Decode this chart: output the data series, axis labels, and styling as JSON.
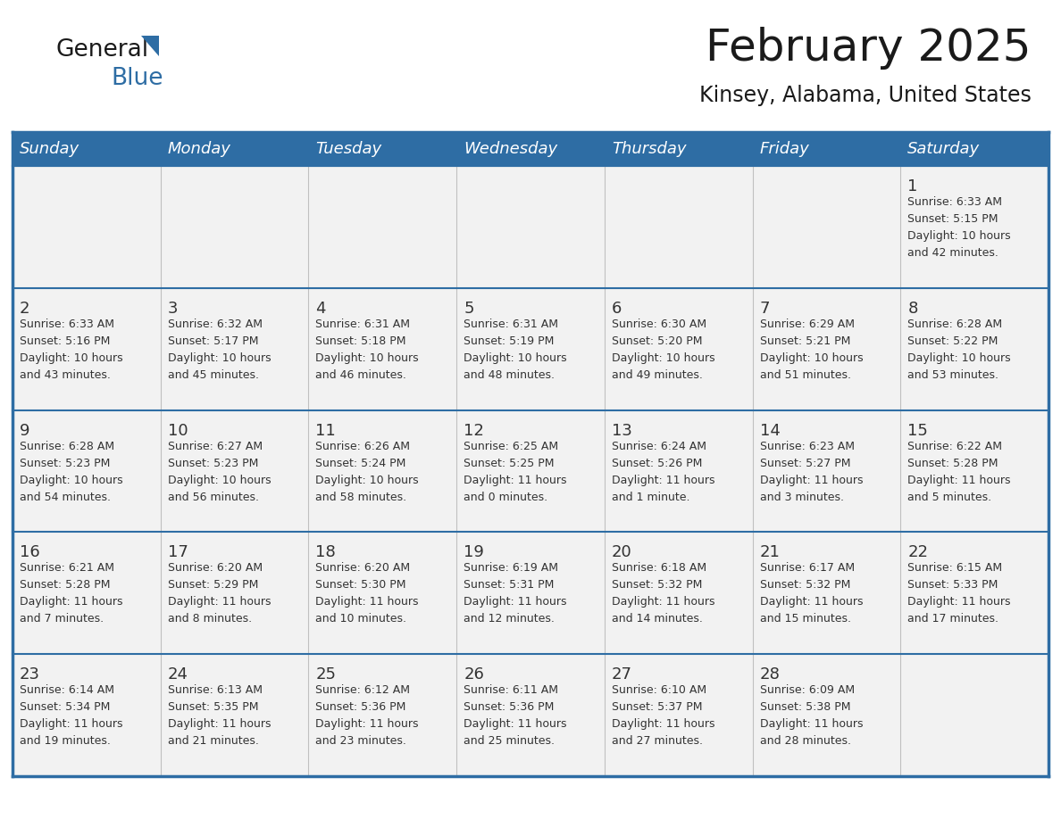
{
  "title": "February 2025",
  "subtitle": "Kinsey, Alabama, United States",
  "header_bg": "#2E6DA4",
  "header_text_color": "#FFFFFF",
  "cell_bg_alt": "#EFEFEF",
  "cell_bg_white": "#FFFFFF",
  "cell_text_color": "#333333",
  "day_num_color": "#333333",
  "border_color": "#2E6DA4",
  "sep_line_color": "#2E6DA4",
  "days_of_week": [
    "Sunday",
    "Monday",
    "Tuesday",
    "Wednesday",
    "Thursday",
    "Friday",
    "Saturday"
  ],
  "weeks": [
    [
      {
        "day": "",
        "info": ""
      },
      {
        "day": "",
        "info": ""
      },
      {
        "day": "",
        "info": ""
      },
      {
        "day": "",
        "info": ""
      },
      {
        "day": "",
        "info": ""
      },
      {
        "day": "",
        "info": ""
      },
      {
        "day": "1",
        "info": "Sunrise: 6:33 AM\nSunset: 5:15 PM\nDaylight: 10 hours\nand 42 minutes."
      }
    ],
    [
      {
        "day": "2",
        "info": "Sunrise: 6:33 AM\nSunset: 5:16 PM\nDaylight: 10 hours\nand 43 minutes."
      },
      {
        "day": "3",
        "info": "Sunrise: 6:32 AM\nSunset: 5:17 PM\nDaylight: 10 hours\nand 45 minutes."
      },
      {
        "day": "4",
        "info": "Sunrise: 6:31 AM\nSunset: 5:18 PM\nDaylight: 10 hours\nand 46 minutes."
      },
      {
        "day": "5",
        "info": "Sunrise: 6:31 AM\nSunset: 5:19 PM\nDaylight: 10 hours\nand 48 minutes."
      },
      {
        "day": "6",
        "info": "Sunrise: 6:30 AM\nSunset: 5:20 PM\nDaylight: 10 hours\nand 49 minutes."
      },
      {
        "day": "7",
        "info": "Sunrise: 6:29 AM\nSunset: 5:21 PM\nDaylight: 10 hours\nand 51 minutes."
      },
      {
        "day": "8",
        "info": "Sunrise: 6:28 AM\nSunset: 5:22 PM\nDaylight: 10 hours\nand 53 minutes."
      }
    ],
    [
      {
        "day": "9",
        "info": "Sunrise: 6:28 AM\nSunset: 5:23 PM\nDaylight: 10 hours\nand 54 minutes."
      },
      {
        "day": "10",
        "info": "Sunrise: 6:27 AM\nSunset: 5:23 PM\nDaylight: 10 hours\nand 56 minutes."
      },
      {
        "day": "11",
        "info": "Sunrise: 6:26 AM\nSunset: 5:24 PM\nDaylight: 10 hours\nand 58 minutes."
      },
      {
        "day": "12",
        "info": "Sunrise: 6:25 AM\nSunset: 5:25 PM\nDaylight: 11 hours\nand 0 minutes."
      },
      {
        "day": "13",
        "info": "Sunrise: 6:24 AM\nSunset: 5:26 PM\nDaylight: 11 hours\nand 1 minute."
      },
      {
        "day": "14",
        "info": "Sunrise: 6:23 AM\nSunset: 5:27 PM\nDaylight: 11 hours\nand 3 minutes."
      },
      {
        "day": "15",
        "info": "Sunrise: 6:22 AM\nSunset: 5:28 PM\nDaylight: 11 hours\nand 5 minutes."
      }
    ],
    [
      {
        "day": "16",
        "info": "Sunrise: 6:21 AM\nSunset: 5:28 PM\nDaylight: 11 hours\nand 7 minutes."
      },
      {
        "day": "17",
        "info": "Sunrise: 6:20 AM\nSunset: 5:29 PM\nDaylight: 11 hours\nand 8 minutes."
      },
      {
        "day": "18",
        "info": "Sunrise: 6:20 AM\nSunset: 5:30 PM\nDaylight: 11 hours\nand 10 minutes."
      },
      {
        "day": "19",
        "info": "Sunrise: 6:19 AM\nSunset: 5:31 PM\nDaylight: 11 hours\nand 12 minutes."
      },
      {
        "day": "20",
        "info": "Sunrise: 6:18 AM\nSunset: 5:32 PM\nDaylight: 11 hours\nand 14 minutes."
      },
      {
        "day": "21",
        "info": "Sunrise: 6:17 AM\nSunset: 5:32 PM\nDaylight: 11 hours\nand 15 minutes."
      },
      {
        "day": "22",
        "info": "Sunrise: 6:15 AM\nSunset: 5:33 PM\nDaylight: 11 hours\nand 17 minutes."
      }
    ],
    [
      {
        "day": "23",
        "info": "Sunrise: 6:14 AM\nSunset: 5:34 PM\nDaylight: 11 hours\nand 19 minutes."
      },
      {
        "day": "24",
        "info": "Sunrise: 6:13 AM\nSunset: 5:35 PM\nDaylight: 11 hours\nand 21 minutes."
      },
      {
        "day": "25",
        "info": "Sunrise: 6:12 AM\nSunset: 5:36 PM\nDaylight: 11 hours\nand 23 minutes."
      },
      {
        "day": "26",
        "info": "Sunrise: 6:11 AM\nSunset: 5:36 PM\nDaylight: 11 hours\nand 25 minutes."
      },
      {
        "day": "27",
        "info": "Sunrise: 6:10 AM\nSunset: 5:37 PM\nDaylight: 11 hours\nand 27 minutes."
      },
      {
        "day": "28",
        "info": "Sunrise: 6:09 AM\nSunset: 5:38 PM\nDaylight: 11 hours\nand 28 minutes."
      },
      {
        "day": "",
        "info": ""
      }
    ]
  ],
  "logo_text_general": "General",
  "logo_text_blue": "Blue",
  "logo_color_general": "#1a1a1a",
  "logo_color_blue": "#2E6DA4",
  "logo_triangle_color": "#2E6DA4",
  "title_fontsize": 36,
  "subtitle_fontsize": 17,
  "header_fontsize": 13,
  "day_num_fontsize": 13,
  "info_fontsize": 9
}
